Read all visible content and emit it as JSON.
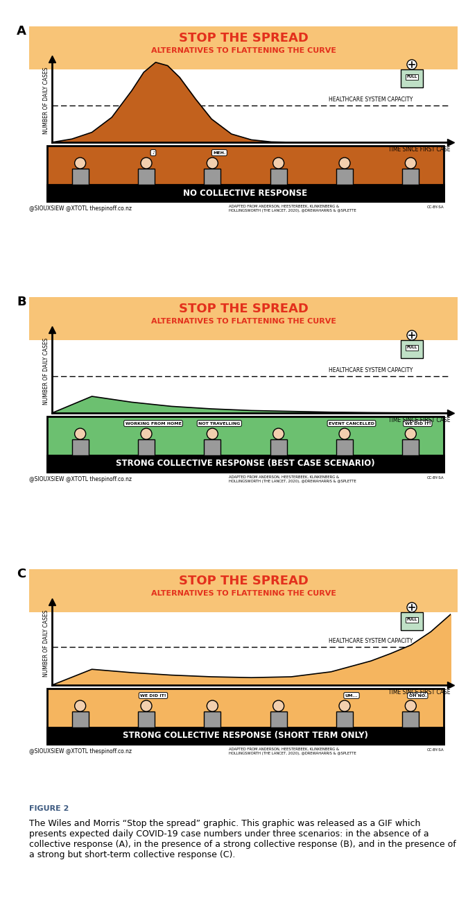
{
  "chart_data": [
    {
      "panel": "A",
      "type": "area",
      "title": "STOP THE SPREAD",
      "subtitle": "ALTERNATIVES TO FLATTENING THE CURVE",
      "x_label": "TIME SINCE FIRST CASE",
      "y_label": "NUMBER OF DAILY CASES",
      "x": [
        0,
        0.5,
        1,
        1.5,
        2,
        2.3,
        2.6,
        2.9,
        3.2,
        3.6,
        4,
        4.5,
        5,
        5.5,
        6,
        10
      ],
      "values": [
        0,
        0.4,
        1.2,
        3.0,
        6.2,
        8.4,
        9.6,
        9.2,
        7.8,
        5.2,
        2.8,
        1.0,
        0.3,
        0.05,
        0,
        0
      ],
      "color": "#c2611d",
      "xlim": [
        0,
        10
      ],
      "ylim": [
        0,
        10
      ],
      "tick_labels": false,
      "capacity": {
        "value": 4.4,
        "label": "HEALTHCARE SYSTEM CAPACITY",
        "sign": "FULL"
      },
      "scenario": "NO COLLECTIVE RESPONSE",
      "speech": [
        "♪",
        "MEH."
      ],
      "credit": "@SIOUXSIEW @XTOTL thespinoff.co.nz",
      "source": [
        "ADAPTED FROM ANDERSON, HEESTERBEEK, KLINKENBERG &",
        "HOLLINGSWORTH (THE LANCET, 2020), @DREWAHARRIS & @SPLETTE"
      ],
      "license": "CC-BY-SA"
    },
    {
      "panel": "B",
      "type": "area",
      "title": "STOP THE SPREAD",
      "subtitle": "ALTERNATIVES TO FLATTENING THE CURVE",
      "x_label": "TIME SINCE FIRST CASE",
      "y_label": "NUMBER OF DAILY CASES",
      "x": [
        0,
        1,
        2,
        3,
        4,
        5,
        6,
        7,
        8,
        9,
        10
      ],
      "values": [
        0,
        2.0,
        1.3,
        0.8,
        0.5,
        0.3,
        0.2,
        0.1,
        0.05,
        0.02,
        0
      ],
      "color": "#6cc070",
      "xlim": [
        0,
        10
      ],
      "ylim": [
        0,
        10
      ],
      "tick_labels": false,
      "capacity": {
        "value": 4.4,
        "label": "HEALTHCARE SYSTEM CAPACITY",
        "sign": "FULL"
      },
      "scenario": "STRONG COLLECTIVE RESPONSE (BEST CASE SCENARIO)",
      "speech": [
        "WORKING FROM HOME",
        "NOT TRAVELLING",
        "EVENT CANCELLED",
        "WE DID IT!"
      ],
      "credit": "@SIOUXSIEW @XTOTL thespinoff.co.nz",
      "source": [
        "ADAPTED FROM ANDERSON, HEESTERBEEK, KLINKENBERG &",
        "HOLLINGSWORTH (THE LANCET, 2020), @DREWAHARRIS & @SPLETTE"
      ],
      "license": "CC-BY-SA"
    },
    {
      "panel": "C",
      "type": "area",
      "title": "STOP THE SPREAD",
      "subtitle": "ALTERNATIVES TO FLATTENING THE CURVE",
      "x_label": "TIME SINCE FIRST CASE",
      "y_label": "NUMBER OF DAILY CASES",
      "x": [
        0,
        1,
        2,
        3,
        4,
        5,
        6,
        7,
        8,
        8.5,
        9,
        9.5,
        10
      ],
      "values": [
        0,
        1.9,
        1.5,
        1.2,
        1.0,
        0.9,
        1.0,
        1.6,
        2.9,
        3.8,
        4.8,
        6.4,
        8.5
      ],
      "color": "#f5b55f",
      "xlim": [
        0,
        10
      ],
      "ylim": [
        0,
        10
      ],
      "tick_labels": false,
      "capacity": {
        "value": 4.6,
        "label": "HEALTHCARE SYSTEM CAPACITY",
        "sign": "FULL"
      },
      "scenario": "STRONG COLLECTIVE RESPONSE (SHORT TERM ONLY)",
      "speech": [
        "WE DID IT!",
        "UM...",
        "OH NO."
      ],
      "credit": "@SIOUXSIEW @XTOTL thespinoff.co.nz",
      "source": [
        "ADAPTED FROM ANDERSON, HEESTERBEEK, KLINKENBERG &",
        "HOLLINGSWORTH (THE LANCET, 2020), @DREWAHARRIS & @SPLETTE"
      ],
      "license": "CC-BY-SA"
    }
  ],
  "figure": {
    "label": "FIGURE 2",
    "caption": "The Wiles and Morris “Stop the spread” graphic. This graphic was released as a GIF which presents expected daily COVID-19 case numbers under three scenarios: in the absence of a collective response (A), in the presence of a strong collective response (B), and in the presence of a strong but short-term collective response (C)."
  }
}
